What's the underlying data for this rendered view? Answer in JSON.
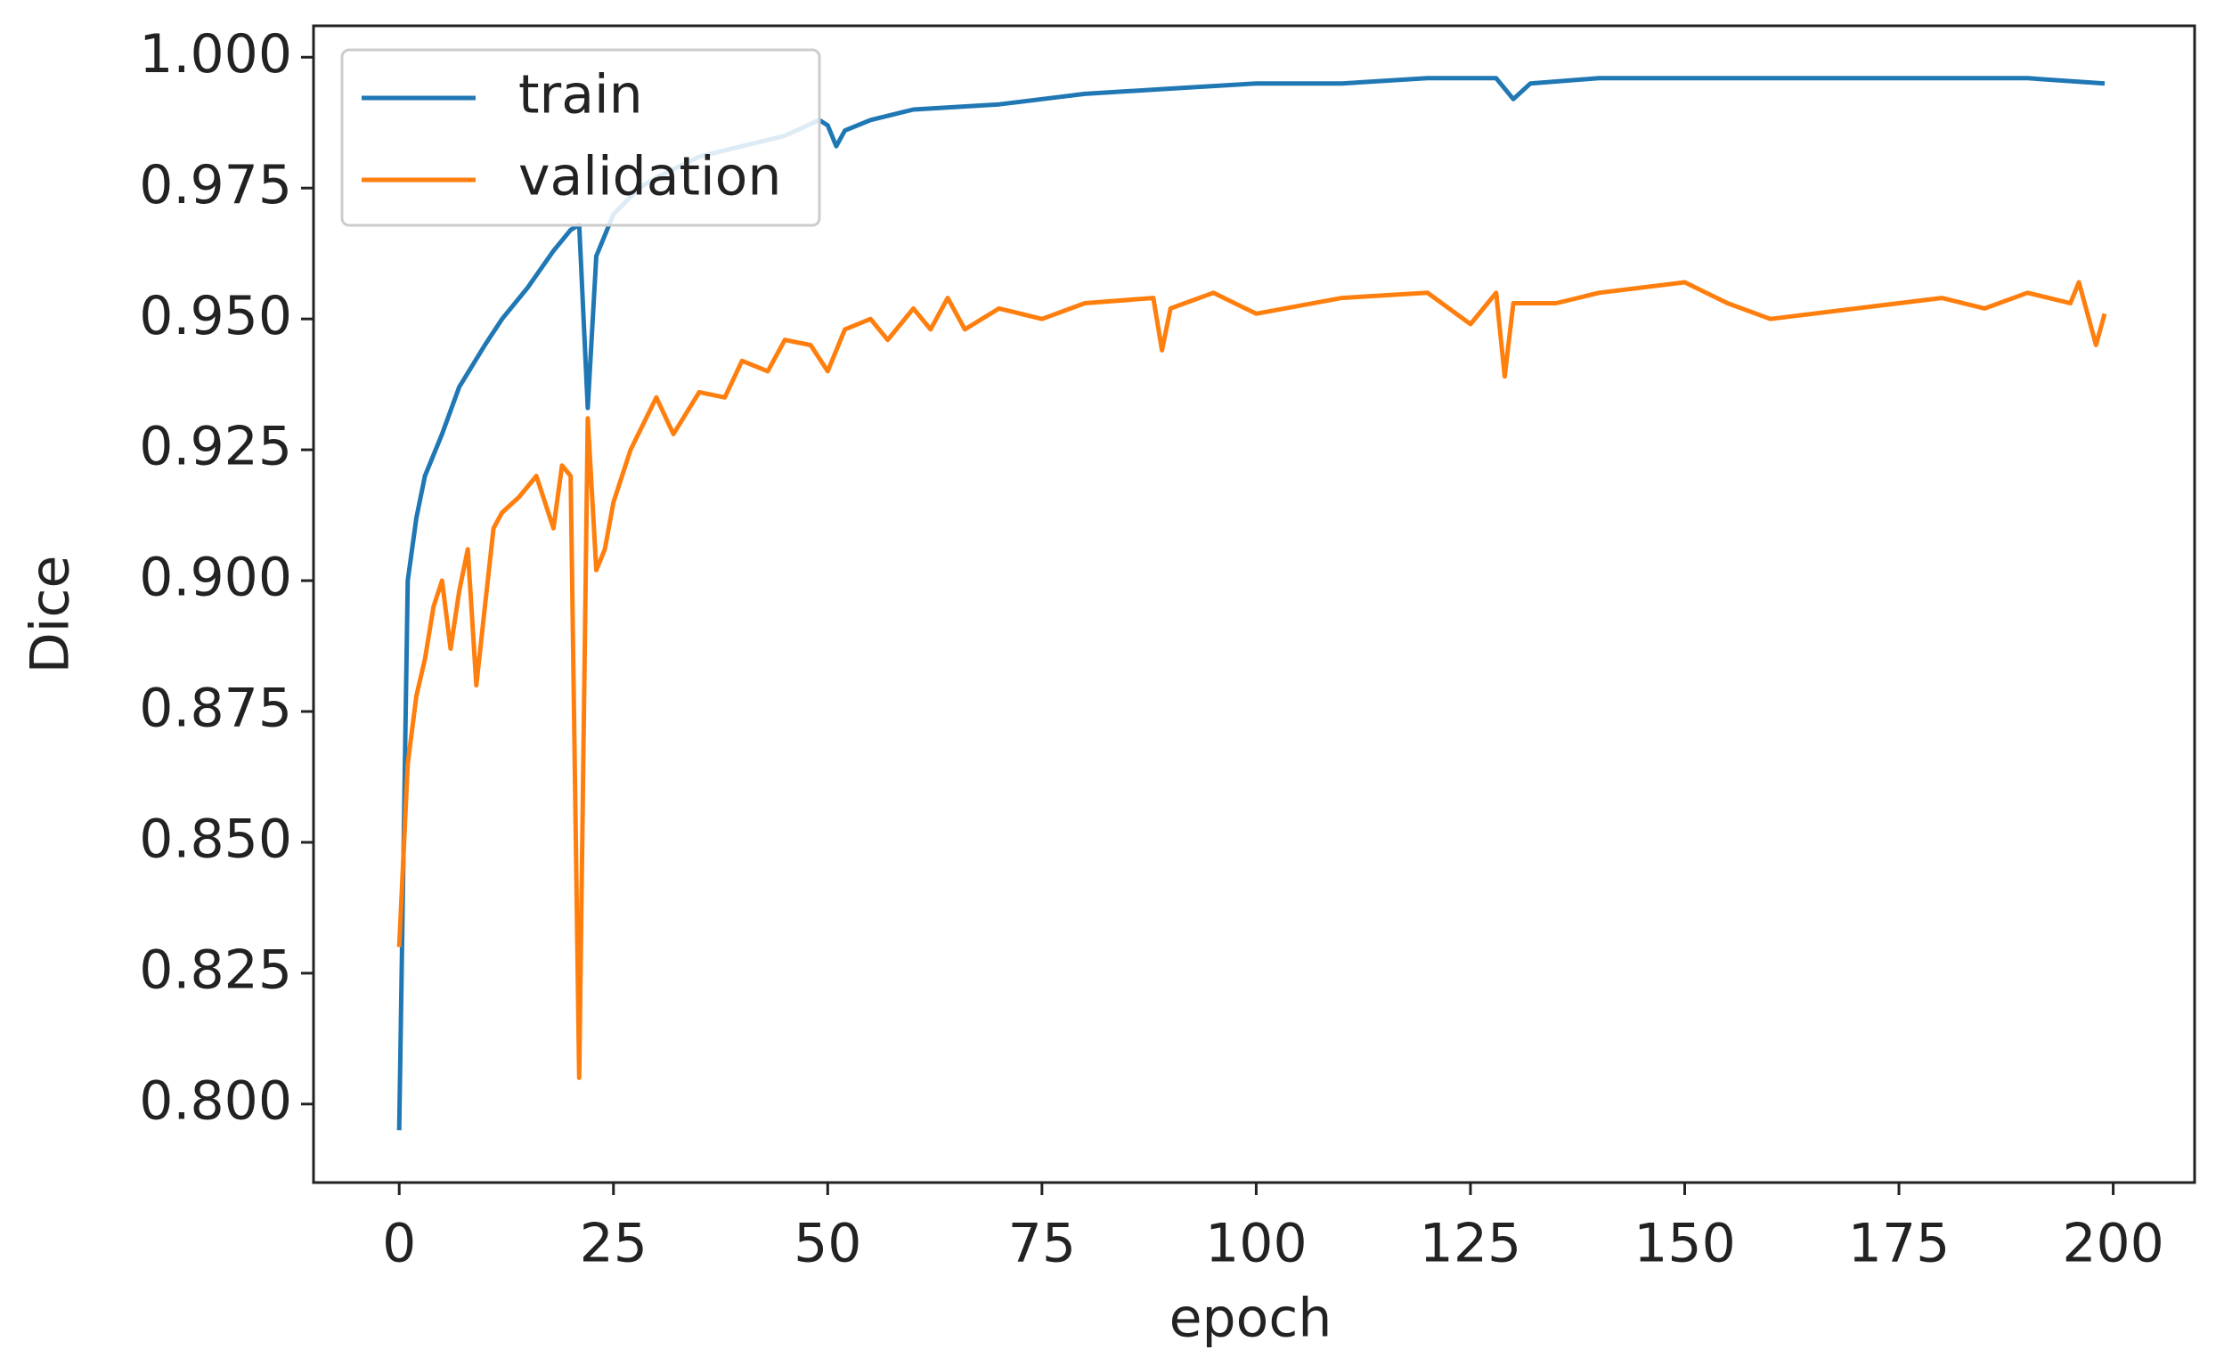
{
  "chart_data": {
    "type": "line",
    "xlabel": "epoch",
    "ylabel": "Dice",
    "xlim": [
      -10,
      209.5
    ],
    "xticks": [
      0,
      25,
      50,
      75,
      100,
      125,
      150,
      175,
      200
    ],
    "ylim": [
      0.785,
      1.006
    ],
    "yticks": [
      {
        "value": 0.8,
        "label": "0.800"
      },
      {
        "value": 0.825,
        "label": "0.825"
      },
      {
        "value": 0.85,
        "label": "0.850"
      },
      {
        "value": 0.875,
        "label": "0.875"
      },
      {
        "value": 0.9,
        "label": "0.900"
      },
      {
        "value": 0.925,
        "label": "0.925"
      },
      {
        "value": 0.95,
        "label": "0.950"
      },
      {
        "value": 0.975,
        "label": "0.975"
      },
      {
        "value": 1.0,
        "label": "1.000"
      }
    ],
    "grid": false,
    "legend": "upper left",
    "series": [
      {
        "name": "train",
        "color": "#1f77b4",
        "x": [
          0,
          1,
          2,
          3,
          5,
          7,
          10,
          12,
          15,
          18,
          20,
          21,
          22,
          23,
          25,
          28,
          30,
          35,
          40,
          45,
          49,
          50,
          51,
          52,
          55,
          60,
          70,
          75,
          80,
          90,
          100,
          110,
          120,
          128,
          130,
          132,
          140,
          150,
          160,
          170,
          180,
          190,
          199
        ],
        "values": [
          0.795,
          0.9,
          0.912,
          0.92,
          0.928,
          0.937,
          0.945,
          0.95,
          0.956,
          0.963,
          0.967,
          0.968,
          0.933,
          0.962,
          0.97,
          0.975,
          0.977,
          0.981,
          0.983,
          0.985,
          0.988,
          0.987,
          0.983,
          0.986,
          0.988,
          0.99,
          0.991,
          0.992,
          0.993,
          0.994,
          0.995,
          0.995,
          0.996,
          0.996,
          0.992,
          0.995,
          0.996,
          0.996,
          0.996,
          0.996,
          0.996,
          0.996,
          0.995
        ]
      },
      {
        "name": "validation",
        "color": "#ff7f0e",
        "x": [
          0,
          1,
          2,
          3,
          4,
          5,
          6,
          7,
          8,
          9,
          10,
          11,
          12,
          14,
          16,
          18,
          19,
          20,
          21,
          22,
          23,
          24,
          25,
          27,
          30,
          32,
          35,
          38,
          40,
          43,
          45,
          48,
          50,
          52,
          55,
          57,
          60,
          62,
          64,
          66,
          70,
          75,
          80,
          88,
          89,
          90,
          95,
          100,
          110,
          120,
          125,
          128,
          129,
          130,
          135,
          140,
          150,
          155,
          160,
          170,
          180,
          185,
          190,
          195,
          196,
          198,
          199
        ],
        "values": [
          0.83,
          0.865,
          0.878,
          0.885,
          0.895,
          0.9,
          0.887,
          0.898,
          0.906,
          0.88,
          0.895,
          0.91,
          0.913,
          0.916,
          0.92,
          0.91,
          0.922,
          0.92,
          0.805,
          0.931,
          0.902,
          0.906,
          0.915,
          0.925,
          0.935,
          0.928,
          0.936,
          0.935,
          0.942,
          0.94,
          0.946,
          0.945,
          0.94,
          0.948,
          0.95,
          0.946,
          0.952,
          0.948,
          0.954,
          0.948,
          0.952,
          0.95,
          0.953,
          0.954,
          0.944,
          0.952,
          0.955,
          0.951,
          0.954,
          0.955,
          0.949,
          0.955,
          0.939,
          0.953,
          0.953,
          0.955,
          0.957,
          0.953,
          0.95,
          0.952,
          0.954,
          0.952,
          0.955,
          0.953,
          0.957,
          0.945,
          0.951
        ]
      }
    ]
  }
}
